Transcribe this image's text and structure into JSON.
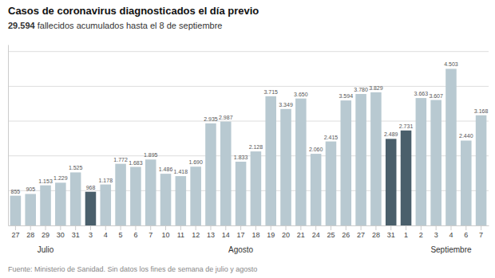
{
  "chart_data": {
    "type": "bar",
    "title": "Casos de coronavirus diagnosticados el día previo",
    "subtitle": "29.594 fallecidos acumulados hasta el 8 de septiembre",
    "footer": "Fuente: Ministerio de Sanidad. Sin datos los fines de semana de julio y agosto",
    "categories": [
      "27",
      "28",
      "29",
      "30",
      "31",
      "3",
      "4",
      "5",
      "6",
      "7",
      "10",
      "11",
      "12",
      "13",
      "14",
      "17",
      "18",
      "19",
      "20",
      "21",
      "24",
      "25",
      "26",
      "27",
      "28",
      "31",
      "1",
      "2",
      "3",
      "4",
      "6",
      "7"
    ],
    "values": [
      855,
      905,
      1153,
      1229,
      1525,
      968,
      1178,
      1772,
      1683,
      1895,
      1486,
      1418,
      1690,
      2935,
      2987,
      1833,
      2128,
      3715,
      3349,
      3650,
      2060,
      2415,
      3594,
      3780,
      3829,
      2489,
      2731,
      3663,
      3607,
      4503,
      2440,
      3168
    ],
    "value_labels": [
      "855",
      "905",
      "1.153",
      "1.229",
      "1.525",
      "968",
      "1.178",
      "1.772",
      "1.683",
      "1.895",
      "1.486",
      "1.418",
      "1.690",
      "2.935",
      "2.987",
      "1.833",
      "2.128",
      "3.715",
      "3.349",
      "3.650",
      "2.060",
      "2.415",
      "3.594",
      "3.780",
      "3.829",
      "2.489",
      "2.731",
      "3.663",
      "3.607",
      "4.503",
      "2.440",
      "3.168"
    ],
    "colors": [
      "#b8c9d1",
      "#b8c9d1",
      "#b8c9d1",
      "#b8c9d1",
      "#b8c9d1",
      "#4a5f6b",
      "#b8c9d1",
      "#b8c9d1",
      "#b8c9d1",
      "#b8c9d1",
      "#b8c9d1",
      "#b8c9d1",
      "#b8c9d1",
      "#b8c9d1",
      "#b8c9d1",
      "#b8c9d1",
      "#b8c9d1",
      "#b8c9d1",
      "#b8c9d1",
      "#b8c9d1",
      "#b8c9d1",
      "#b8c9d1",
      "#b8c9d1",
      "#b8c9d1",
      "#b8c9d1",
      "#4a5f6b",
      "#4a5f6b",
      "#b8c9d1",
      "#b8c9d1",
      "#b8c9d1",
      "#b8c9d1",
      "#b8c9d1"
    ],
    "annotations": [
      {
        "text": "Julio",
        "start": 0,
        "end": 4
      },
      {
        "text": "Agosto",
        "start": 6,
        "end": 24
      },
      {
        "text": "Septiembre",
        "start": 27,
        "end": 31
      }
    ],
    "ylim": [
      0,
      5200
    ],
    "yticks": [
      1000,
      2000,
      3000,
      4000,
      5000
    ],
    "grid": true,
    "data_labels": true,
    "tick_labels": "x"
  }
}
